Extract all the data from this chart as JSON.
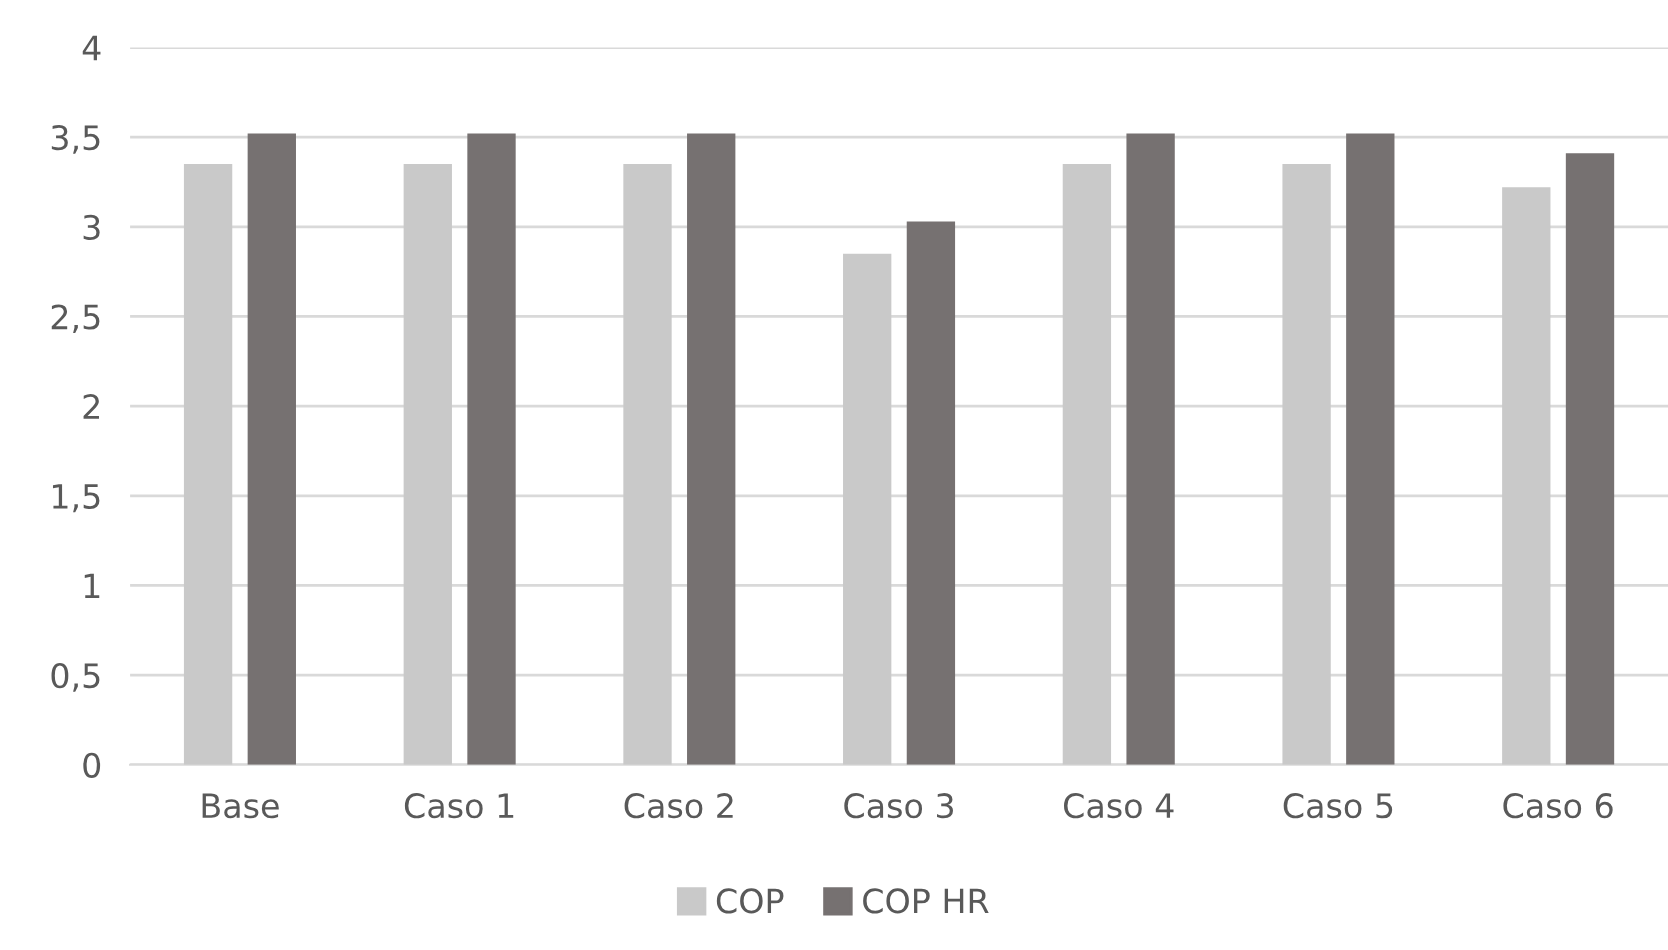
{
  "chart_data": {
    "type": "bar",
    "categories": [
      "Base",
      "Caso 1",
      "Caso 2",
      "Caso 3",
      "Caso 4",
      "Caso 5",
      "Caso 6"
    ],
    "series": [
      {
        "name": "COP",
        "color": "#c9c9c9",
        "values": [
          3.35,
          3.35,
          3.35,
          2.85,
          3.35,
          3.35,
          3.22
        ]
      },
      {
        "name": "COP HR",
        "color": "#767171",
        "values": [
          3.52,
          3.52,
          3.52,
          3.03,
          3.52,
          3.52,
          3.41
        ]
      }
    ],
    "ylim": [
      0,
      4
    ],
    "yticks": [
      0,
      {
        "value": 0.5,
        "label": "0,5"
      },
      1,
      {
        "value": 1.5,
        "label": "1,5"
      },
      2,
      {
        "value": 2.5,
        "label": "2,5"
      },
      3,
      {
        "value": 3.5,
        "label": "3,5"
      },
      4
    ],
    "grid": "y",
    "legend": "bottom"
  }
}
